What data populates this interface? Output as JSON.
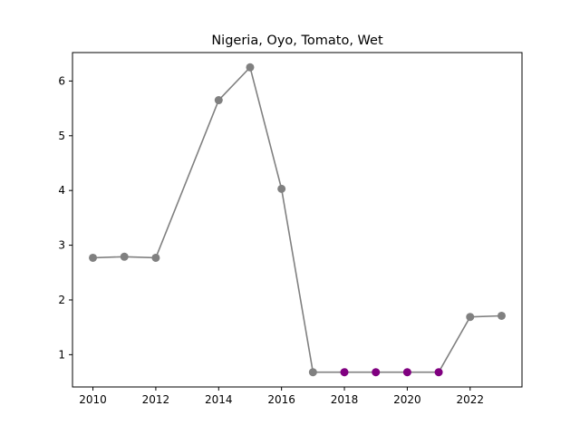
{
  "chart_data": {
    "type": "line",
    "title": "Nigeria, Oyo, Tomato, Wet",
    "xlabel": "",
    "ylabel": "",
    "xlim": [
      2009.35,
      2023.65
    ],
    "ylim": [
      0.41,
      6.52
    ],
    "xticks": [
      2010,
      2012,
      2014,
      2016,
      2018,
      2020,
      2022
    ],
    "yticks": [
      1,
      2,
      3,
      4,
      5,
      6
    ],
    "grid": false,
    "line_color": "#808080",
    "points": [
      {
        "x": 2010,
        "y": 2.77,
        "color": "#808080"
      },
      {
        "x": 2011,
        "y": 2.79,
        "color": "#808080"
      },
      {
        "x": 2012,
        "y": 2.77,
        "color": "#808080"
      },
      {
        "x": 2014,
        "y": 5.65,
        "color": "#808080"
      },
      {
        "x": 2015,
        "y": 6.25,
        "color": "#808080"
      },
      {
        "x": 2016,
        "y": 4.03,
        "color": "#808080"
      },
      {
        "x": 2017,
        "y": 0.68,
        "color": "#808080"
      },
      {
        "x": 2018,
        "y": 0.68,
        "color": "#800080"
      },
      {
        "x": 2019,
        "y": 0.68,
        "color": "#800080"
      },
      {
        "x": 2020,
        "y": 0.68,
        "color": "#800080"
      },
      {
        "x": 2021,
        "y": 0.68,
        "color": "#800080"
      },
      {
        "x": 2022,
        "y": 1.69,
        "color": "#808080"
      },
      {
        "x": 2023,
        "y": 1.71,
        "color": "#808080"
      }
    ]
  }
}
